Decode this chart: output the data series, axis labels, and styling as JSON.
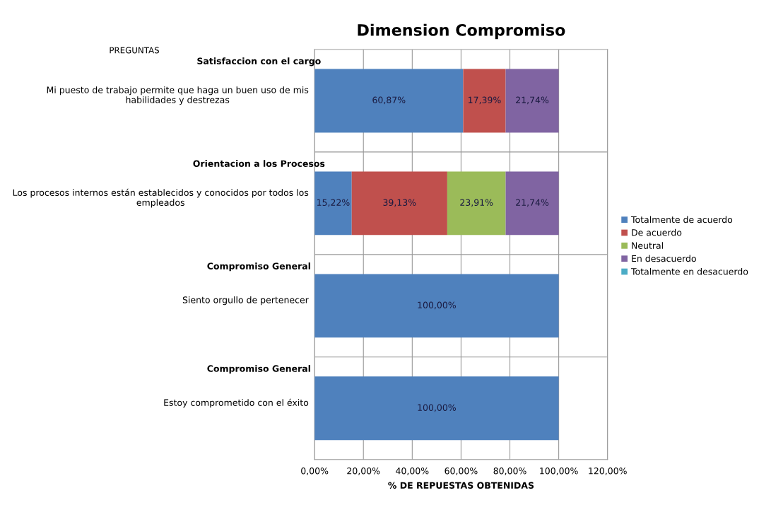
{
  "chart_data": {
    "type": "bar",
    "orientation": "horizontal",
    "stacked": true,
    "title": "Dimension Compromiso",
    "xlabel": "% DE REPUESTAS OBTENIDAS",
    "annotations": [
      "PREGUNTAS"
    ],
    "categories": [
      "Satisfaccion con el cargo\nMi puesto de trabajo permite que haga un buen uso de mis\nhabilidades y destrezas",
      "Orientacion a los Procesos\nLos procesos internos están establecidos y conocidos por todos los\nempleados",
      "Compromiso General\nSiento orgullo de pertenecer",
      "Compromiso General\nEstoy comprometido con el éxito"
    ],
    "series": [
      {
        "name": "Totalmente de acuerdo",
        "color": "#4f81bd",
        "values": [
          60.87,
          15.22,
          100,
          100
        ],
        "value_labels": [
          "60,87%",
          "15,22%",
          "100,00%",
          "100,00%"
        ]
      },
      {
        "name": "De acuerdo",
        "color": "#c0504d",
        "values": [
          17.39,
          39.13,
          0,
          0
        ],
        "value_labels": [
          "17,39%",
          "39,13%",
          null,
          null
        ]
      },
      {
        "name": "Neutral",
        "color": "#9bbb59",
        "values": [
          0,
          23.91,
          0,
          0
        ],
        "value_labels": [
          null,
          "23,91%",
          null,
          null
        ]
      },
      {
        "name": "En desacuerdo",
        "color": "#8064a2",
        "values": [
          21.74,
          21.74,
          0,
          0
        ],
        "value_labels": [
          "21,74%",
          "21,74%",
          null,
          null
        ]
      },
      {
        "name": "Totalmente en desacuerdo",
        "color": "#4bacc6",
        "values": [
          0,
          0,
          0,
          0
        ],
        "value_labels": [
          null,
          null,
          null,
          null
        ]
      }
    ],
    "xlim": [
      0,
      120
    ],
    "xticks": [
      {
        "value": 0,
        "label": "0,00%"
      },
      {
        "value": 20,
        "label": "20,00%"
      },
      {
        "value": 40,
        "label": "40,00%"
      },
      {
        "value": 60,
        "label": "60,00%"
      },
      {
        "value": 80,
        "label": "80,00%"
      },
      {
        "value": 100,
        "label": "100,00%"
      },
      {
        "value": 120,
        "label": "120,00%"
      }
    ],
    "grid": true,
    "legend": "right"
  }
}
